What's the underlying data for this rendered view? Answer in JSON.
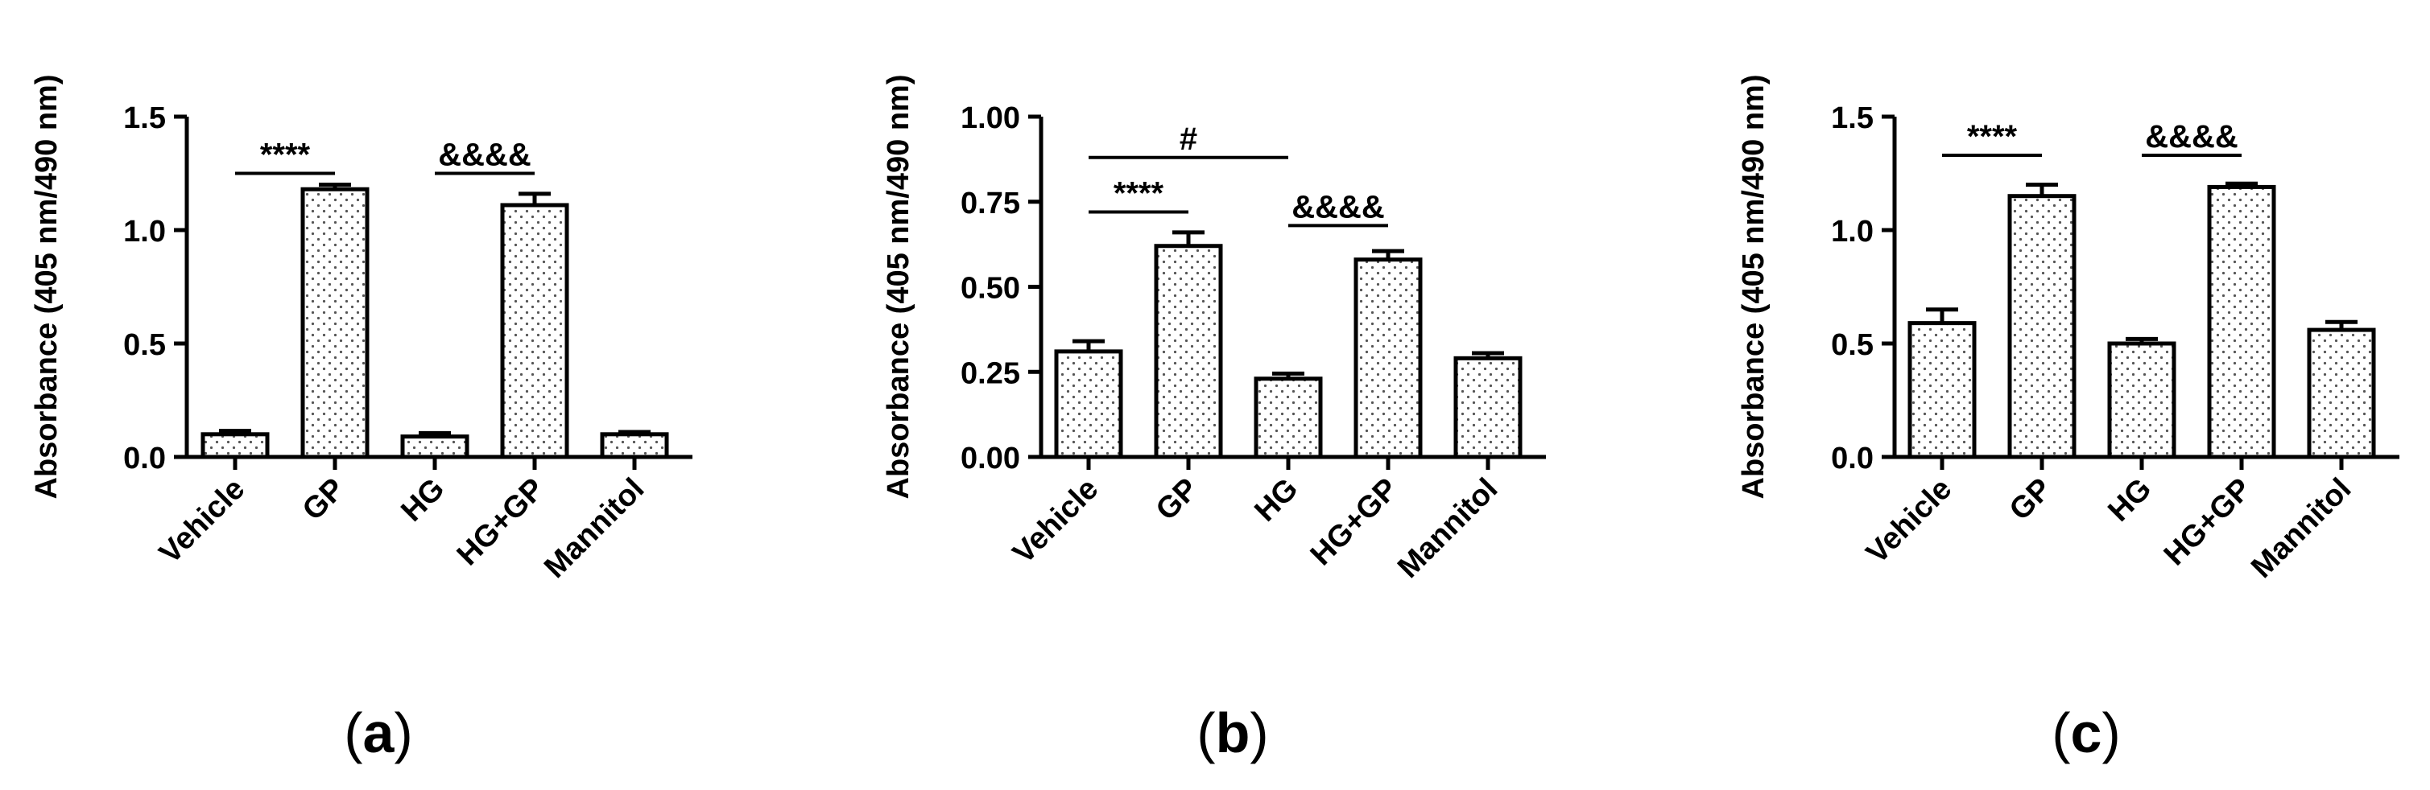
{
  "chart_data": [
    {
      "type": "bar",
      "panel_label": "a",
      "categories": [
        "Vehicle",
        "GP",
        "HG",
        "HG+GP",
        "Mannitol"
      ],
      "values": [
        0.1,
        1.18,
        0.09,
        1.11,
        0.1
      ],
      "errors": [
        0.015,
        0.02,
        0.015,
        0.05,
        0.01
      ],
      "ylabel": "Absorbance (405 nm/490 nm)",
      "ylim": [
        0,
        1.5
      ],
      "yticks": [
        "0.0",
        "0.5",
        "1.0",
        "1.5"
      ],
      "ytick_values": [
        0,
        0.5,
        1.0,
        1.5
      ],
      "annotations": [
        {
          "text": "****",
          "from": 0,
          "to": 1,
          "y": 1.25
        },
        {
          "text": "&&&&",
          "from": 2,
          "to": 3,
          "y": 1.25
        }
      ]
    },
    {
      "type": "bar",
      "panel_label": "b",
      "categories": [
        "Vehicle",
        "GP",
        "HG",
        "HG+GP",
        "Mannitol"
      ],
      "values": [
        0.31,
        0.62,
        0.23,
        0.58,
        0.29
      ],
      "errors": [
        0.03,
        0.04,
        0.015,
        0.025,
        0.015
      ],
      "ylabel": "Absorbance (405 nm/490 nm)",
      "ylim": [
        0,
        1.0
      ],
      "yticks": [
        "0.00",
        "0.25",
        "0.50",
        "0.75",
        "1.00"
      ],
      "ytick_values": [
        0,
        0.25,
        0.5,
        0.75,
        1.0
      ],
      "annotations": [
        {
          "text": "#",
          "from": 0,
          "to": 2,
          "y": 0.88
        },
        {
          "text": "****",
          "from": 0,
          "to": 1,
          "y": 0.72
        },
        {
          "text": "&&&&",
          "from": 2,
          "to": 3,
          "y": 0.68
        }
      ]
    },
    {
      "type": "bar",
      "panel_label": "c",
      "categories": [
        "Vehicle",
        "GP",
        "HG",
        "HG+GP",
        "Mannitol"
      ],
      "values": [
        0.59,
        1.15,
        0.5,
        1.19,
        0.56
      ],
      "errors": [
        0.06,
        0.05,
        0.02,
        0.015,
        0.035
      ],
      "ylabel": "Absorbance (405 nm/490 nm)",
      "ylim": [
        0,
        1.5
      ],
      "yticks": [
        "0.0",
        "0.5",
        "1.0",
        "1.5"
      ],
      "ytick_values": [
        0,
        0.5,
        1.0,
        1.5
      ],
      "annotations": [
        {
          "text": "****",
          "from": 0,
          "to": 1,
          "y": 1.33
        },
        {
          "text": "&&&&",
          "from": 2,
          "to": 3,
          "y": 1.33
        }
      ]
    }
  ]
}
